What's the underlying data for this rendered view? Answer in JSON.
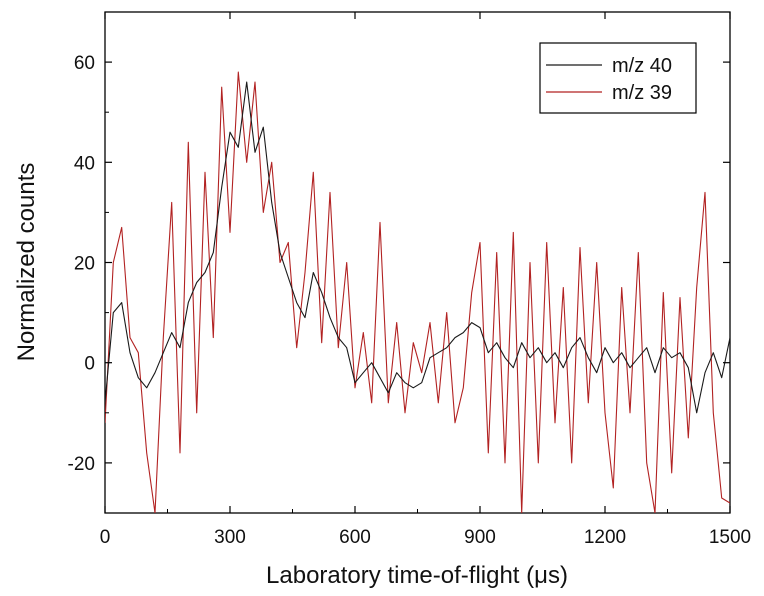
{
  "chart_data": {
    "type": "line",
    "title": "",
    "xlabel": "Laboratory time-of-flight (μs)",
    "ylabel": "Normalized counts",
    "xlim": [
      0,
      1500
    ],
    "ylim": [
      -30,
      70
    ],
    "xticks": [
      0,
      300,
      600,
      900,
      1200,
      1500
    ],
    "yticks": [
      -20,
      0,
      20,
      40,
      60
    ],
    "grid": false,
    "legend_position": "top-right",
    "series": [
      {
        "name": "m/z 40",
        "color": "#1a1a1a",
        "x": [
          0,
          20,
          40,
          60,
          80,
          100,
          120,
          140,
          160,
          180,
          200,
          220,
          240,
          260,
          280,
          300,
          320,
          340,
          360,
          380,
          400,
          420,
          440,
          460,
          480,
          500,
          520,
          540,
          560,
          580,
          600,
          620,
          640,
          660,
          680,
          700,
          720,
          740,
          760,
          780,
          800,
          820,
          840,
          860,
          880,
          900,
          920,
          940,
          960,
          980,
          1000,
          1020,
          1040,
          1060,
          1080,
          1100,
          1120,
          1140,
          1160,
          1180,
          1200,
          1220,
          1240,
          1260,
          1280,
          1300,
          1320,
          1340,
          1360,
          1380,
          1400,
          1420,
          1440,
          1460,
          1480,
          1500
        ],
        "y": [
          -8,
          10,
          12,
          2,
          -3,
          -5,
          -2,
          2,
          6,
          3,
          12,
          16,
          18,
          22,
          35,
          46,
          43,
          56,
          42,
          47,
          32,
          22,
          17,
          12,
          9,
          18,
          14,
          9,
          5,
          3,
          -4,
          -2,
          0,
          -3,
          -6,
          -2,
          -4,
          -5,
          -4,
          1,
          2,
          3,
          5,
          6,
          8,
          7,
          2,
          4,
          1,
          -1,
          4,
          1,
          3,
          0,
          2,
          -1,
          3,
          5,
          1,
          -2,
          3,
          0,
          2,
          -1,
          1,
          3,
          -2,
          3,
          1,
          2,
          -1,
          -10,
          -2,
          2,
          -3,
          5
        ]
      },
      {
        "name": "m/z 39",
        "color": "#b22222",
        "x": [
          0,
          20,
          40,
          60,
          80,
          100,
          120,
          140,
          160,
          180,
          200,
          220,
          240,
          260,
          280,
          300,
          320,
          340,
          360,
          380,
          400,
          420,
          440,
          460,
          480,
          500,
          520,
          540,
          560,
          580,
          600,
          620,
          640,
          660,
          680,
          700,
          720,
          740,
          760,
          780,
          800,
          820,
          840,
          860,
          880,
          900,
          920,
          940,
          960,
          980,
          1000,
          1020,
          1040,
          1060,
          1080,
          1100,
          1120,
          1140,
          1160,
          1180,
          1200,
          1220,
          1240,
          1260,
          1280,
          1300,
          1320,
          1340,
          1360,
          1380,
          1400,
          1420,
          1440,
          1460,
          1480,
          1500
        ],
        "y": [
          -12,
          20,
          27,
          5,
          2,
          -18,
          -30,
          5,
          32,
          -18,
          44,
          -10,
          38,
          5,
          55,
          26,
          58,
          40,
          56,
          30,
          40,
          20,
          24,
          3,
          18,
          38,
          4,
          34,
          3,
          20,
          -5,
          6,
          -8,
          28,
          -8,
          8,
          -10,
          4,
          -2,
          8,
          -8,
          10,
          -12,
          -5,
          14,
          24,
          -18,
          22,
          -20,
          26,
          -30,
          20,
          -20,
          24,
          -12,
          15,
          -20,
          23,
          -8,
          20,
          -10,
          -25,
          15,
          -10,
          22,
          -20,
          -30,
          14,
          -22,
          13,
          -15,
          15,
          34,
          -10,
          -27,
          -28
        ]
      }
    ]
  }
}
